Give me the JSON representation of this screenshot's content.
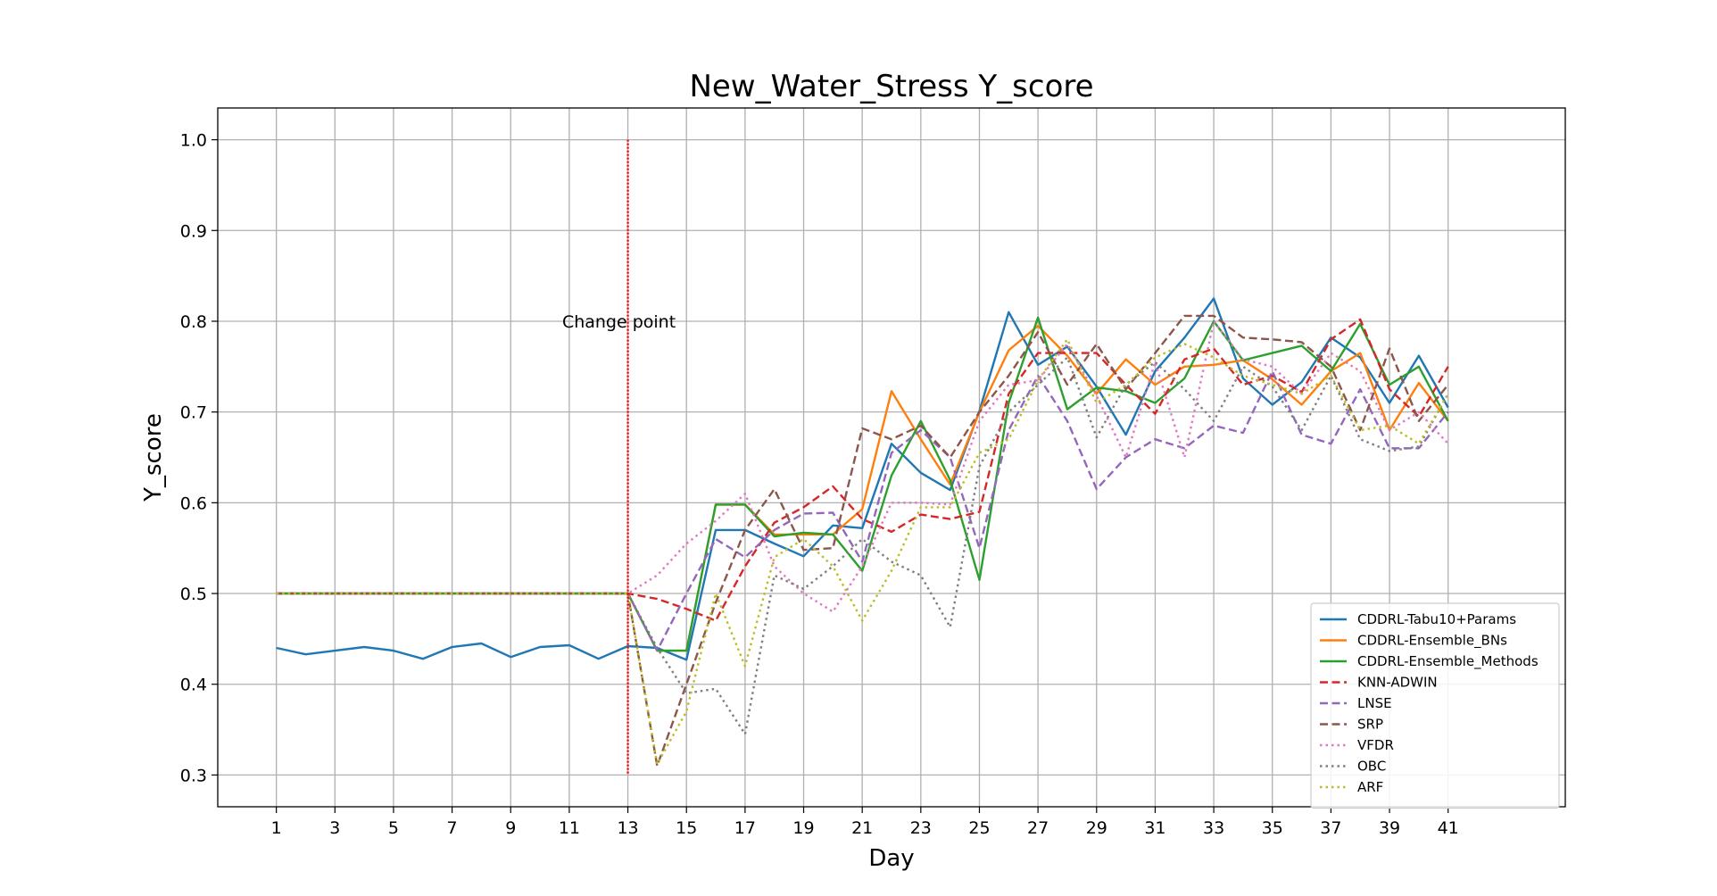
{
  "chart_data": {
    "type": "line",
    "title": "New_Water_Stress Y_score",
    "xlabel": "Day",
    "ylabel": "Y_score",
    "xlim": [
      -1,
      45
    ],
    "ylim": [
      0.265,
      1.035
    ],
    "xticks": [
      1,
      3,
      5,
      7,
      9,
      11,
      13,
      15,
      17,
      19,
      21,
      23,
      25,
      27,
      29,
      31,
      33,
      35,
      37,
      39,
      41
    ],
    "yticks": [
      0.3,
      0.4,
      0.5,
      0.6,
      0.7,
      0.8,
      0.9,
      1.0
    ],
    "ytick_labels": [
      "0.3",
      "0.4",
      "0.5",
      "0.6",
      "0.7",
      "0.8",
      "0.9",
      "1.0"
    ],
    "grid": true,
    "legend_position": "lower right",
    "change_point": {
      "x": 13,
      "ymin": 0.3,
      "ymax": 1.0,
      "label": "Change point",
      "label_y": 0.8,
      "color": "#ff0000"
    },
    "series": [
      {
        "name": "CDDRL-Tabu10+Params",
        "color": "#1f77b4",
        "style": "solid",
        "x": [
          1,
          2,
          3,
          4,
          5,
          6,
          7,
          8,
          9,
          10,
          11,
          12,
          13,
          14,
          15,
          16,
          17,
          18,
          19,
          20,
          21,
          22,
          23,
          24,
          25,
          26,
          27,
          28,
          29,
          30,
          31,
          32,
          33,
          34,
          35,
          36,
          37,
          38,
          39,
          40,
          41
        ],
        "values": [
          0.44,
          0.433,
          0.437,
          0.441,
          0.437,
          0.428,
          0.441,
          0.445,
          0.43,
          0.441,
          0.443,
          0.428,
          0.442,
          0.44,
          0.427,
          0.57,
          0.57,
          0.555,
          0.541,
          0.575,
          0.572,
          0.665,
          0.633,
          0.614,
          0.701,
          0.81,
          0.752,
          0.772,
          0.728,
          0.675,
          0.745,
          0.782,
          0.825,
          0.737,
          0.708,
          0.733,
          0.782,
          0.76,
          0.71,
          0.762,
          0.705
        ]
      },
      {
        "name": "CDDRL-Ensemble_BNs",
        "color": "#ff7f0e",
        "style": "solid",
        "x": [
          1,
          2,
          3,
          4,
          5,
          6,
          7,
          8,
          9,
          10,
          11,
          12,
          13,
          14,
          15,
          16,
          17,
          18,
          19,
          20,
          21,
          22,
          23,
          24,
          25,
          26,
          27,
          28,
          29,
          30,
          31,
          32,
          33,
          34,
          35,
          36,
          37,
          38,
          39,
          40,
          41
        ],
        "values": [
          0.5,
          0.5,
          0.5,
          0.5,
          0.5,
          0.5,
          0.5,
          0.5,
          0.5,
          0.5,
          0.5,
          0.5,
          0.5,
          0.437,
          0.437,
          0.598,
          0.598,
          0.565,
          0.565,
          0.565,
          0.593,
          0.723,
          0.67,
          0.62,
          0.7,
          0.768,
          0.795,
          0.762,
          0.72,
          0.758,
          0.73,
          0.75,
          0.752,
          0.757,
          0.736,
          0.708,
          0.745,
          0.765,
          0.68,
          0.732,
          0.69
        ]
      },
      {
        "name": "CDDRL-Ensemble_Methods",
        "color": "#2ca02c",
        "style": "solid",
        "x": [
          1,
          2,
          3,
          4,
          5,
          6,
          7,
          8,
          9,
          10,
          11,
          12,
          13,
          14,
          15,
          16,
          17,
          18,
          19,
          20,
          21,
          22,
          23,
          24,
          25,
          26,
          27,
          28,
          29,
          30,
          31,
          32,
          33,
          34,
          35,
          36,
          37,
          38,
          39,
          40,
          41
        ],
        "values": [
          0.5,
          0.5,
          0.5,
          0.5,
          0.5,
          0.5,
          0.5,
          0.5,
          0.5,
          0.5,
          0.5,
          0.5,
          0.5,
          0.437,
          0.437,
          0.598,
          0.598,
          0.563,
          0.567,
          0.565,
          0.525,
          0.63,
          0.69,
          0.625,
          0.515,
          0.71,
          0.804,
          0.703,
          0.727,
          0.723,
          0.71,
          0.737,
          0.8,
          0.757,
          0.765,
          0.773,
          0.745,
          0.797,
          0.73,
          0.75,
          0.69
        ]
      },
      {
        "name": "KNN-ADWIN",
        "color": "#d62728",
        "style": "dashed",
        "x": [
          1,
          2,
          3,
          4,
          5,
          6,
          7,
          8,
          9,
          10,
          11,
          12,
          13,
          14,
          15,
          16,
          17,
          18,
          19,
          20,
          21,
          22,
          23,
          24,
          25,
          26,
          27,
          28,
          29,
          30,
          31,
          32,
          33,
          34,
          35,
          36,
          37,
          38,
          39,
          40,
          41
        ],
        "values": [
          0.5,
          0.5,
          0.5,
          0.5,
          0.5,
          0.5,
          0.5,
          0.5,
          0.5,
          0.5,
          0.5,
          0.5,
          0.5,
          0.494,
          0.483,
          0.47,
          0.53,
          0.578,
          0.595,
          0.618,
          0.582,
          0.568,
          0.587,
          0.582,
          0.59,
          0.72,
          0.765,
          0.765,
          0.765,
          0.73,
          0.698,
          0.758,
          0.77,
          0.73,
          0.74,
          0.722,
          0.78,
          0.802,
          0.725,
          0.695,
          0.75
        ]
      },
      {
        "name": "LNSE",
        "color": "#9467bd",
        "style": "dashed",
        "x": [
          1,
          2,
          3,
          4,
          5,
          6,
          7,
          8,
          9,
          10,
          11,
          12,
          13,
          14,
          15,
          16,
          17,
          18,
          19,
          20,
          21,
          22,
          23,
          24,
          25,
          26,
          27,
          28,
          29,
          30,
          31,
          32,
          33,
          34,
          35,
          36,
          37,
          38,
          39,
          40,
          41
        ],
        "values": [
          0.5,
          0.5,
          0.5,
          0.5,
          0.5,
          0.5,
          0.5,
          0.5,
          0.5,
          0.5,
          0.5,
          0.5,
          0.5,
          0.437,
          0.5,
          0.56,
          0.54,
          0.57,
          0.588,
          0.589,
          0.535,
          0.655,
          0.68,
          0.65,
          0.55,
          0.68,
          0.74,
          0.69,
          0.615,
          0.65,
          0.67,
          0.66,
          0.685,
          0.677,
          0.745,
          0.675,
          0.665,
          0.725,
          0.66,
          0.66,
          0.7
        ]
      },
      {
        "name": "SRP",
        "color": "#8c564b",
        "style": "dashed",
        "x": [
          1,
          2,
          3,
          4,
          5,
          6,
          7,
          8,
          9,
          10,
          11,
          12,
          13,
          14,
          15,
          16,
          17,
          18,
          19,
          20,
          21,
          22,
          23,
          24,
          25,
          26,
          27,
          28,
          29,
          30,
          31,
          32,
          33,
          34,
          35,
          36,
          37,
          38,
          39,
          40,
          41
        ],
        "values": [
          0.5,
          0.5,
          0.5,
          0.5,
          0.5,
          0.5,
          0.5,
          0.5,
          0.5,
          0.5,
          0.5,
          0.5,
          0.5,
          0.31,
          0.4,
          0.49,
          0.57,
          0.615,
          0.548,
          0.55,
          0.682,
          0.67,
          0.685,
          0.65,
          0.7,
          0.74,
          0.788,
          0.73,
          0.775,
          0.725,
          0.765,
          0.806,
          0.806,
          0.782,
          0.78,
          0.777,
          0.75,
          0.68,
          0.77,
          0.69,
          0.73
        ]
      },
      {
        "name": "VFDR",
        "color": "#e377c2",
        "style": "dotted",
        "x": [
          1,
          2,
          3,
          4,
          5,
          6,
          7,
          8,
          9,
          10,
          11,
          12,
          13,
          14,
          15,
          16,
          17,
          18,
          19,
          20,
          21,
          22,
          23,
          24,
          25,
          26,
          27,
          28,
          29,
          30,
          31,
          32,
          33,
          34,
          35,
          36,
          37,
          38,
          39,
          40,
          41
        ],
        "values": [
          0.5,
          0.5,
          0.5,
          0.5,
          0.5,
          0.5,
          0.5,
          0.5,
          0.5,
          0.5,
          0.5,
          0.5,
          0.5,
          0.52,
          0.555,
          0.58,
          0.61,
          0.53,
          0.5,
          0.48,
          0.53,
          0.6,
          0.6,
          0.598,
          0.69,
          0.73,
          0.735,
          0.775,
          0.718,
          0.65,
          0.755,
          0.65,
          0.8,
          0.758,
          0.75,
          0.72,
          0.765,
          0.745,
          0.68,
          0.7,
          0.665
        ]
      },
      {
        "name": "OBC",
        "color": "#7f7f7f",
        "style": "dotted",
        "x": [
          1,
          2,
          3,
          4,
          5,
          6,
          7,
          8,
          9,
          10,
          11,
          12,
          13,
          14,
          15,
          16,
          17,
          18,
          19,
          20,
          21,
          22,
          23,
          24,
          25,
          26,
          27,
          28,
          29,
          30,
          31,
          32,
          33,
          34,
          35,
          36,
          37,
          38,
          39,
          40,
          41
        ],
        "values": [
          0.5,
          0.5,
          0.5,
          0.5,
          0.5,
          0.5,
          0.5,
          0.5,
          0.5,
          0.5,
          0.5,
          0.5,
          0.5,
          0.44,
          0.39,
          0.395,
          0.345,
          0.52,
          0.505,
          0.53,
          0.56,
          0.535,
          0.52,
          0.463,
          0.64,
          0.7,
          0.73,
          0.76,
          0.672,
          0.73,
          0.755,
          0.725,
          0.69,
          0.75,
          0.728,
          0.68,
          0.74,
          0.67,
          0.657,
          0.662,
          0.72
        ]
      },
      {
        "name": "ARF",
        "color": "#bcbd22",
        "style": "dotted",
        "x": [
          1,
          2,
          3,
          4,
          5,
          6,
          7,
          8,
          9,
          10,
          11,
          12,
          13,
          14,
          15,
          16,
          17,
          18,
          19,
          20,
          21,
          22,
          23,
          24,
          25,
          26,
          27,
          28,
          29,
          30,
          31,
          32,
          33,
          34,
          35,
          36,
          37,
          38,
          39,
          40,
          41
        ],
        "values": [
          0.5,
          0.5,
          0.5,
          0.5,
          0.5,
          0.5,
          0.5,
          0.5,
          0.5,
          0.5,
          0.5,
          0.5,
          0.5,
          0.312,
          0.37,
          0.5,
          0.42,
          0.54,
          0.56,
          0.53,
          0.47,
          0.525,
          0.595,
          0.595,
          0.655,
          0.67,
          0.735,
          0.78,
          0.71,
          0.73,
          0.76,
          0.775,
          0.76,
          0.74,
          0.73,
          0.72,
          0.74,
          0.68,
          0.685,
          0.665,
          0.72
        ]
      }
    ]
  }
}
